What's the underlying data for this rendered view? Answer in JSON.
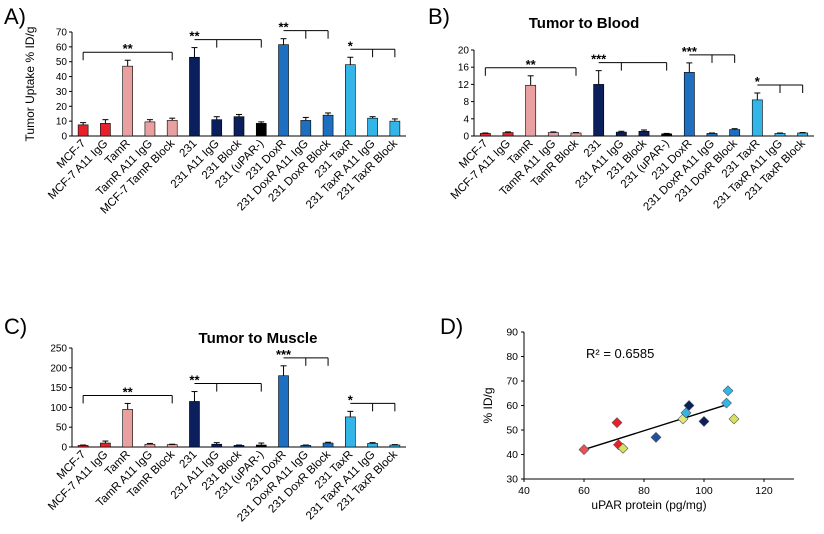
{
  "chart_data": [
    {
      "type": "bar",
      "panel_label": "A)",
      "title": "",
      "ylabel": "Tumor Uptake % ID/g",
      "ylim": [
        0,
        70
      ],
      "yticks": [
        0,
        10,
        20,
        30,
        40,
        50,
        60,
        70
      ],
      "categories": [
        "MCF-7",
        "MCF-7 A11 IgG",
        "TamR",
        "TamR A11 IgG",
        "MCF-7 TamR Block",
        "231",
        "231 A11 IgG",
        "231 Block",
        "231 (uPAR-)",
        "231 DoxR",
        "231 DoxR A11 IgG",
        "231 DoxR Block",
        "231 TaxR",
        "231 TaxR A11 IgG",
        "231 TaxR Block"
      ],
      "values": [
        7.5,
        8.5,
        47,
        9.5,
        10.5,
        53,
        11,
        13,
        8.5,
        61.5,
        10.5,
        14,
        48,
        12,
        10
      ],
      "errors": [
        1.5,
        2.5,
        4,
        1.5,
        1.5,
        6.5,
        2,
        1.5,
        1,
        4,
        2,
        1.5,
        5,
        1,
        1.5
      ],
      "colors": [
        "#e8202a",
        "#e8202a",
        "#e8a0a0",
        "#e8a0a0",
        "#e8a0a0",
        "#0a1f5c",
        "#0a1f5c",
        "#0a1f5c",
        "#000000",
        "#1f6fc0",
        "#1f6fc0",
        "#1f6fc0",
        "#33b5e8",
        "#33b5e8",
        "#33b5e8"
      ],
      "significance": [
        {
          "label": "**",
          "ref": 2,
          "to": [
            0,
            4
          ]
        },
        {
          "label": "**",
          "ref": 5,
          "to": [
            6,
            8
          ]
        },
        {
          "label": "**",
          "ref": 9,
          "to": [
            10,
            11
          ]
        },
        {
          "label": "*",
          "ref": 12,
          "to": [
            13,
            14
          ]
        }
      ]
    },
    {
      "type": "bar",
      "panel_label": "B)",
      "title": "Tumor to Blood",
      "ylabel": "",
      "ylim": [
        0,
        20
      ],
      "yticks": [
        0,
        4,
        8,
        12,
        16,
        20
      ],
      "categories": [
        "MCF-7",
        "MCF-7 A11 IgG",
        "TamR",
        "TamR A11 IgG",
        "TamR Block",
        "231",
        "231 A11 IgG",
        "231 Block",
        "231 (uPAR-)",
        "231 DoxR",
        "231 DoxR A11 IgG",
        "231 DoxR Block",
        "231 TaxR",
        "231 TaxR A11 IgG",
        "231 TaxR Block"
      ],
      "values": [
        0.6,
        0.8,
        11.8,
        0.8,
        0.7,
        12,
        0.9,
        1.1,
        0.5,
        14.8,
        0.6,
        1.5,
        8.4,
        0.6,
        0.7
      ],
      "errors": [
        0.1,
        0.15,
        2.2,
        0.15,
        0.1,
        3.2,
        0.2,
        0.3,
        0.1,
        2.2,
        0.1,
        0.2,
        1.6,
        0.1,
        0.1
      ],
      "colors": [
        "#e8202a",
        "#e8202a",
        "#e8a0a0",
        "#e8a0a0",
        "#e8a0a0",
        "#0a1f5c",
        "#0a1f5c",
        "#0a1f5c",
        "#000000",
        "#1f6fc0",
        "#1f6fc0",
        "#1f6fc0",
        "#33b5e8",
        "#33b5e8",
        "#33b5e8"
      ],
      "significance": [
        {
          "label": "**",
          "ref": 2,
          "to": [
            0,
            4
          ]
        },
        {
          "label": "***",
          "ref": 5,
          "to": [
            6,
            8
          ]
        },
        {
          "label": "***",
          "ref": 9,
          "to": [
            10,
            11
          ]
        },
        {
          "label": "*",
          "ref": 12,
          "to": [
            13,
            14
          ]
        }
      ]
    },
    {
      "type": "bar",
      "panel_label": "C)",
      "title": "Tumor to Muscle",
      "ylabel": "",
      "ylim": [
        0,
        250
      ],
      "yticks": [
        0,
        50,
        100,
        150,
        200,
        250
      ],
      "categories": [
        "MCF-7",
        "MCF-7 A11 IgG",
        "TamR",
        "TamR A11 IgG",
        "TamR Block",
        "231",
        "231 A11 IgG",
        "231 Block",
        "231 (uPAR-)",
        "231 DoxR",
        "231 DoxR A11 IgG",
        "231 DoxR Block",
        "231 TaxR",
        "231 TaxR A11 IgG",
        "231 TaxR Block"
      ],
      "values": [
        4,
        10,
        95,
        7,
        6,
        115,
        7,
        4,
        5,
        180,
        4,
        10,
        76,
        9,
        5
      ],
      "errors": [
        1,
        5,
        15,
        2,
        1,
        25,
        4,
        1,
        5,
        25,
        1,
        2,
        14,
        2,
        1
      ],
      "colors": [
        "#e8202a",
        "#e8202a",
        "#e8a0a0",
        "#e8a0a0",
        "#e8a0a0",
        "#0a1f5c",
        "#0a1f5c",
        "#0a1f5c",
        "#000000",
        "#1f6fc0",
        "#1f6fc0",
        "#1f6fc0",
        "#33b5e8",
        "#33b5e8",
        "#33b5e8"
      ],
      "significance": [
        {
          "label": "**",
          "ref": 2,
          "to": [
            0,
            4
          ]
        },
        {
          "label": "**",
          "ref": 5,
          "to": [
            6,
            8
          ]
        },
        {
          "label": "***",
          "ref": 9,
          "to": [
            10,
            11
          ]
        },
        {
          "label": "*",
          "ref": 12,
          "to": [
            13,
            14
          ]
        }
      ]
    },
    {
      "type": "scatter",
      "panel_label": "D)",
      "title": "",
      "xlabel": "uPAR protein (pg/mg)",
      "ylabel": "% ID/g",
      "xlim": [
        40,
        130
      ],
      "ylim": [
        30,
        90
      ],
      "xticks": [
        40,
        60,
        80,
        100,
        120
      ],
      "yticks": [
        30,
        40,
        50,
        60,
        70,
        80,
        90
      ],
      "annotation": "R² = 0.6585",
      "trendline": {
        "x": [
          60,
          108
        ],
        "y": [
          42,
          60.5
        ]
      },
      "points": [
        {
          "x": 60,
          "y": 42,
          "color": "#e8505a"
        },
        {
          "x": 71,
          "y": 53,
          "color": "#e8202a"
        },
        {
          "x": 71.5,
          "y": 44,
          "color": "#e8202a"
        },
        {
          "x": 73,
          "y": 42.5,
          "color": "#d8e060"
        },
        {
          "x": 84,
          "y": 47,
          "color": "#1f4fa0"
        },
        {
          "x": 93,
          "y": 54.5,
          "color": "#e0e880"
        },
        {
          "x": 94,
          "y": 57,
          "color": "#33b5e8"
        },
        {
          "x": 95,
          "y": 60,
          "color": "#0a1f5c"
        },
        {
          "x": 100,
          "y": 53.5,
          "color": "#0a1f5c"
        },
        {
          "x": 107.5,
          "y": 61,
          "color": "#33b5e8"
        },
        {
          "x": 108,
          "y": 66,
          "color": "#33b5e8"
        },
        {
          "x": 110,
          "y": 54.5,
          "color": "#d8e060"
        }
      ]
    }
  ]
}
